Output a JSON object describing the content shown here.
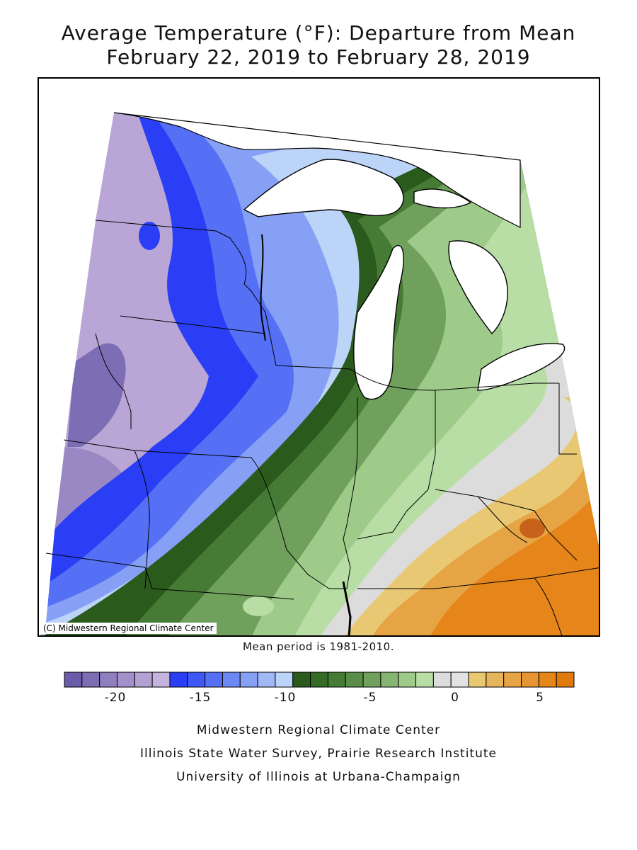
{
  "title": {
    "line1": "Average Temperature (°F): Departure from Mean",
    "line2": "February 22, 2019 to February 28, 2019"
  },
  "map": {
    "copyright": "(C) Midwestern Regional Climate Center",
    "mean_period": "Mean period is 1981-2010."
  },
  "legend": {
    "colors": [
      "#6a5ca8",
      "#7d6db4",
      "#8f7fbf",
      "#a190c9",
      "#b3a1d2",
      "#c6b3dd",
      "#2a3ef5",
      "#3f57f5",
      "#5570f5",
      "#6d88f5",
      "#86a0f5",
      "#a0b8f6",
      "#bcd4f8",
      "#2a5a1c",
      "#356b26",
      "#467b35",
      "#5a8d48",
      "#6fa05c",
      "#86b572",
      "#9ecb8a",
      "#b8dea5",
      "#dcdcdc",
      "#e2e2e2",
      "#e8c873",
      "#e6b55b",
      "#e6a445",
      "#e69530",
      "#e5851a",
      "#e07b0b"
    ],
    "ticks": [
      {
        "label": "-20",
        "value": -20
      },
      {
        "label": "-15",
        "value": -15
      },
      {
        "label": "-10",
        "value": -10
      },
      {
        "label": "-5",
        "value": -5
      },
      {
        "label": "0",
        "value": 0
      },
      {
        "label": "5",
        "value": 5
      }
    ]
  },
  "credits": {
    "line1": "Midwestern Regional Climate Center",
    "line2": "Illinois State Water Survey, Prairie Research Institute",
    "line3": "University of Illinois at Urbana-Champaign"
  }
}
